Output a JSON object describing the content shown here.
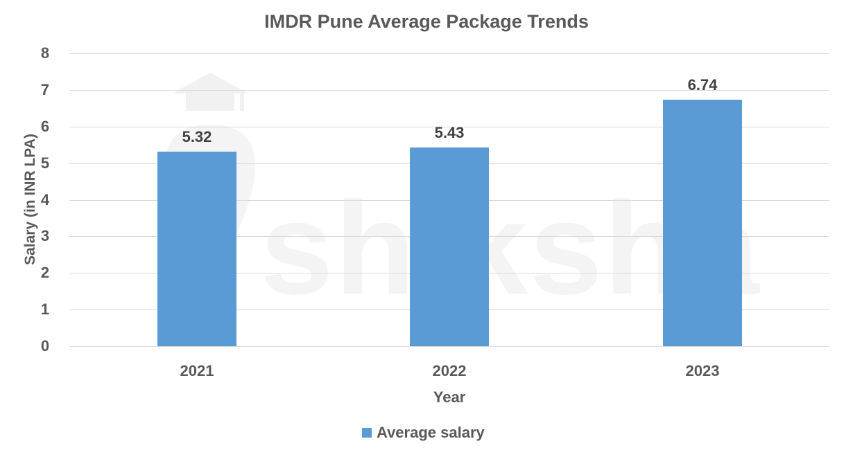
{
  "chart_data": {
    "type": "bar",
    "title": "IMDR Pune Average Package Trends",
    "xlabel": "Year",
    "ylabel": "Salary (in INR LPA)",
    "categories": [
      "2021",
      "2022",
      "2023"
    ],
    "series": [
      {
        "name": "Average salary",
        "values": [
          5.32,
          5.43,
          6.74
        ],
        "color": "#5b9bd5"
      }
    ],
    "ylim": [
      0,
      8
    ],
    "yticks": [
      "0",
      "1",
      "2",
      "3",
      "4",
      "5",
      "6",
      "7",
      "8"
    ],
    "grid": true,
    "legend_position": "bottom",
    "data_labels": [
      "5.32",
      "5.43",
      "6.74"
    ]
  },
  "watermark": {
    "text": "shiksha"
  }
}
